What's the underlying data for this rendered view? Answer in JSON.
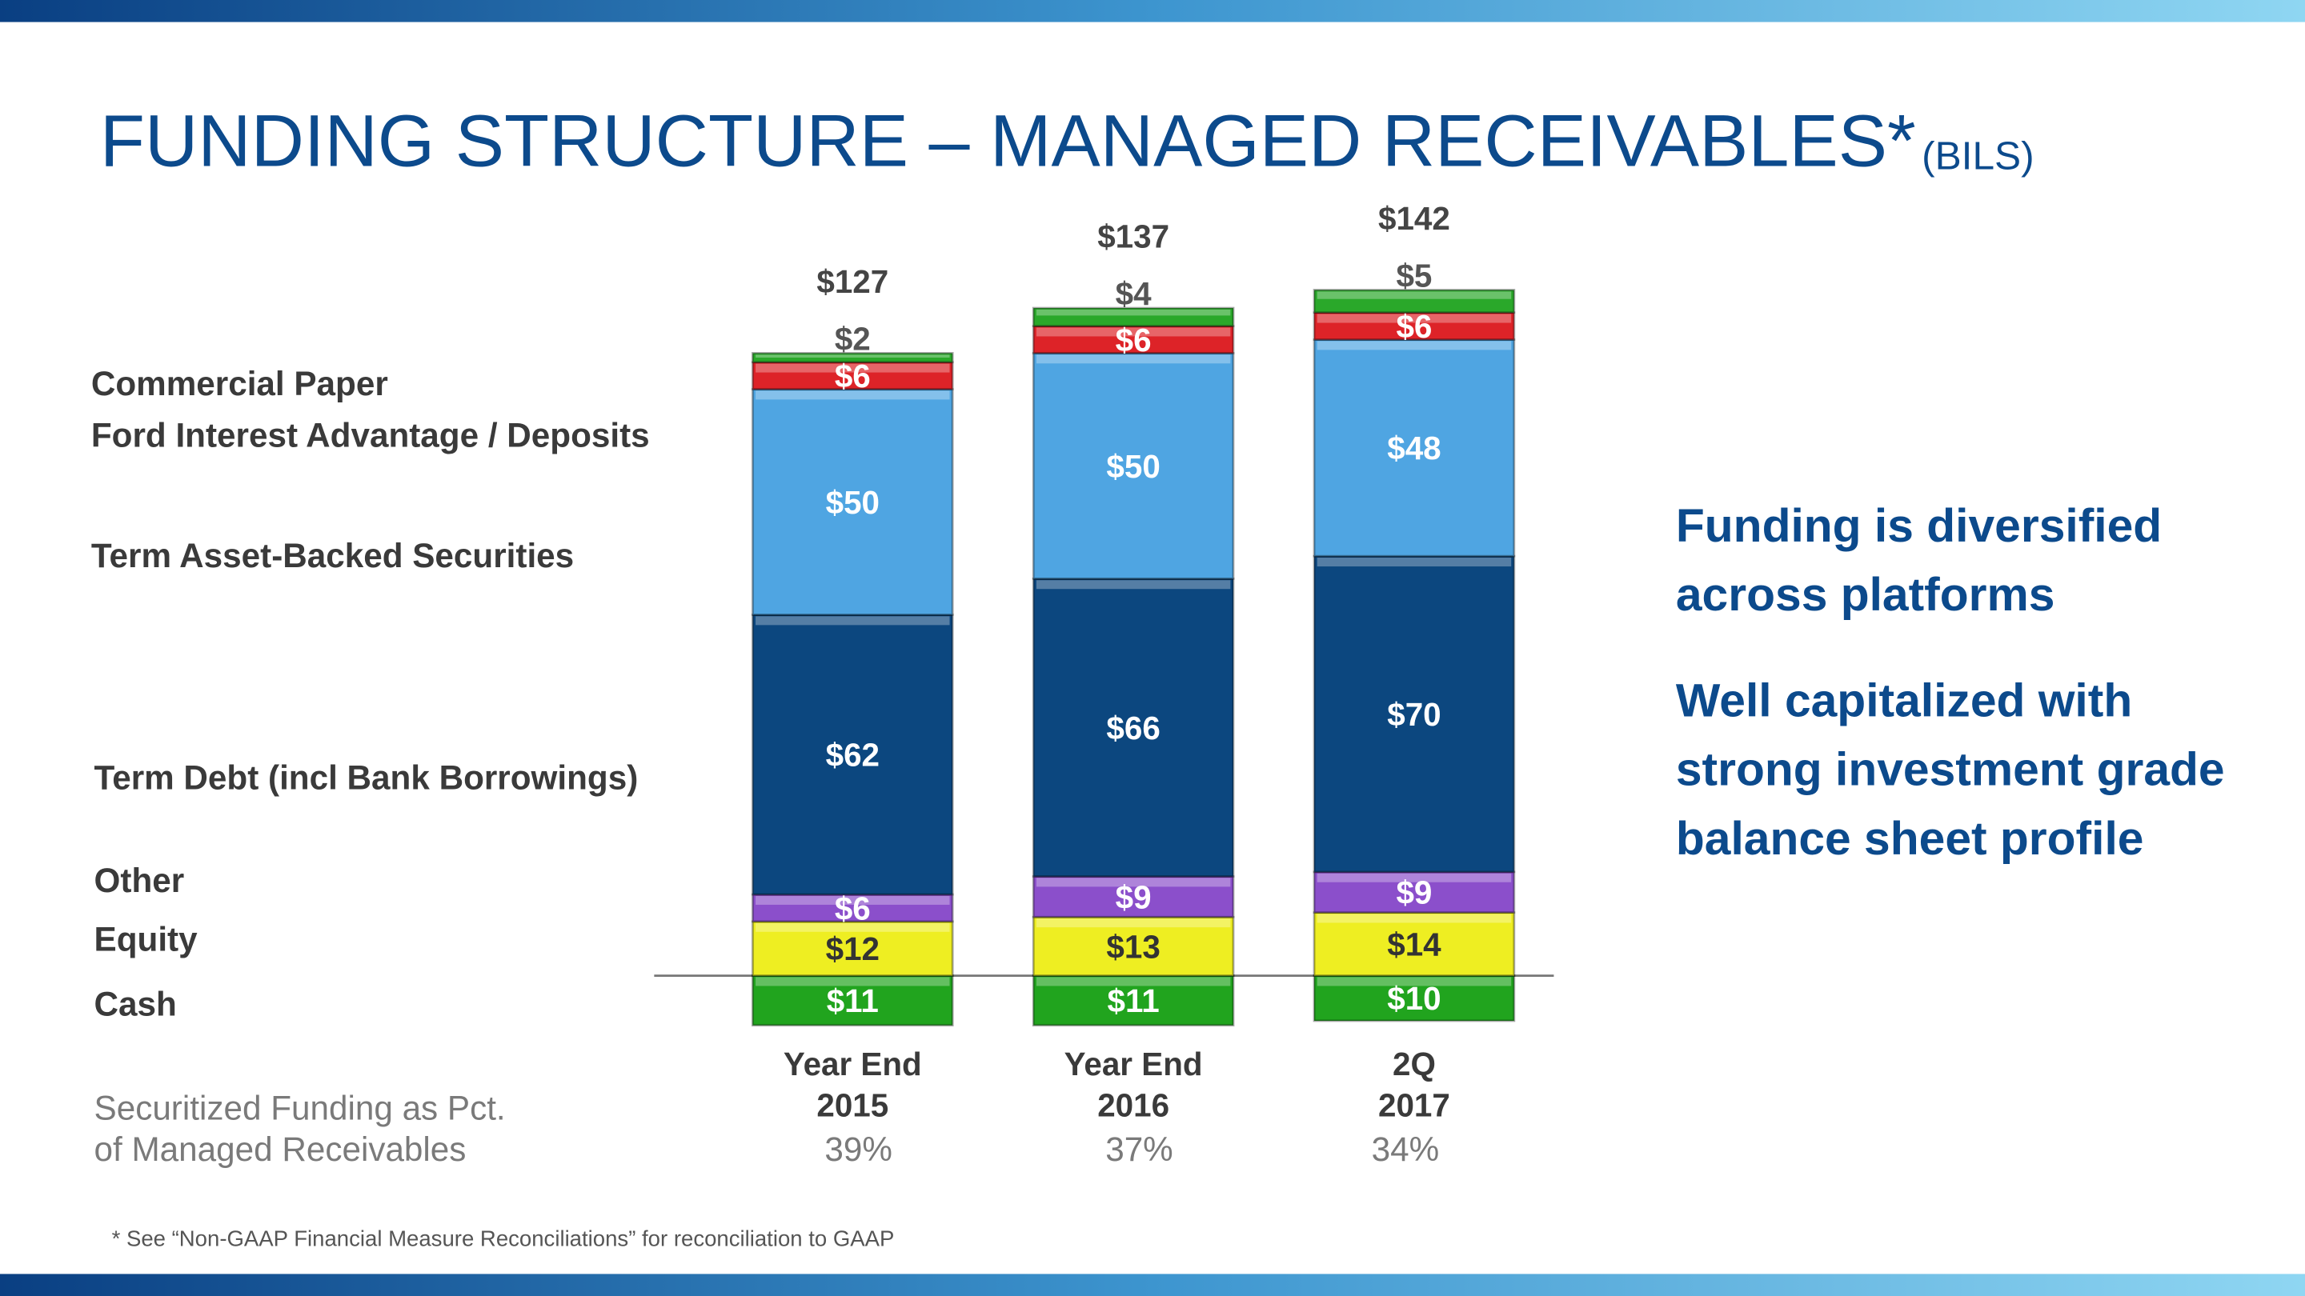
{
  "chart_data": {
    "type": "stacked_bar",
    "title": "FUNDING STRUCTURE – MANAGED RECEIVABLES*",
    "title_unit": "(BILS)",
    "categories": [
      [
        "Year End",
        "2015"
      ],
      [
        "Year End",
        "2016"
      ],
      [
        "2Q",
        "2017"
      ]
    ],
    "series": [
      {
        "name": "Cash",
        "color": "#21a41e",
        "below_axis": true,
        "values": [
          11,
          11,
          10
        ],
        "value_labels": [
          "$11",
          "$11",
          "$10"
        ]
      },
      {
        "name": "Equity",
        "color": "#eeee22",
        "values": [
          12,
          13,
          14
        ],
        "value_labels": [
          "$12",
          "$13",
          "$14"
        ]
      },
      {
        "name": "Other",
        "color": "#8b4fcb",
        "values": [
          6,
          9,
          9
        ],
        "value_labels": [
          "$6",
          "$9",
          "$9"
        ]
      },
      {
        "name": "Term Debt (incl Bank Borrowings)",
        "color": "#0c477f",
        "values": [
          62,
          66,
          70
        ],
        "value_labels": [
          "$62",
          "$66",
          "$70"
        ]
      },
      {
        "name": "Term Asset-Backed Securities",
        "color": "#4fa5e2",
        "values": [
          50,
          50,
          48
        ],
        "value_labels": [
          "$50",
          "$50",
          "$48"
        ]
      },
      {
        "name": "Ford Interest Advantage / Deposits",
        "color": "#dd2328",
        "values": [
          6,
          6,
          6
        ],
        "value_labels": [
          "$6",
          "$6",
          "$6"
        ]
      },
      {
        "name": "Commercial Paper",
        "color": "#2aa82a",
        "values": [
          2,
          4,
          5
        ],
        "value_labels": [
          "$2",
          "$4",
          "$5"
        ]
      }
    ],
    "totals": {
      "values": [
        127,
        137,
        142
      ],
      "value_labels": [
        "$127",
        "$137",
        "$142"
      ]
    },
    "securitized_pct": {
      "label": [
        "Securitized Funding as Pct.",
        "of Managed Receivables"
      ],
      "values": [
        39,
        37,
        34
      ],
      "value_labels": [
        "39%",
        "37%",
        "34%"
      ]
    },
    "notes": [
      [
        "Funding is diversified",
        "across platforms"
      ],
      [
        "Well capitalized with",
        "strong investment grade",
        "balance sheet profile"
      ]
    ],
    "footnote": "* See “Non-GAAP Financial Measure Reconciliations” for reconciliation to GAAP"
  }
}
